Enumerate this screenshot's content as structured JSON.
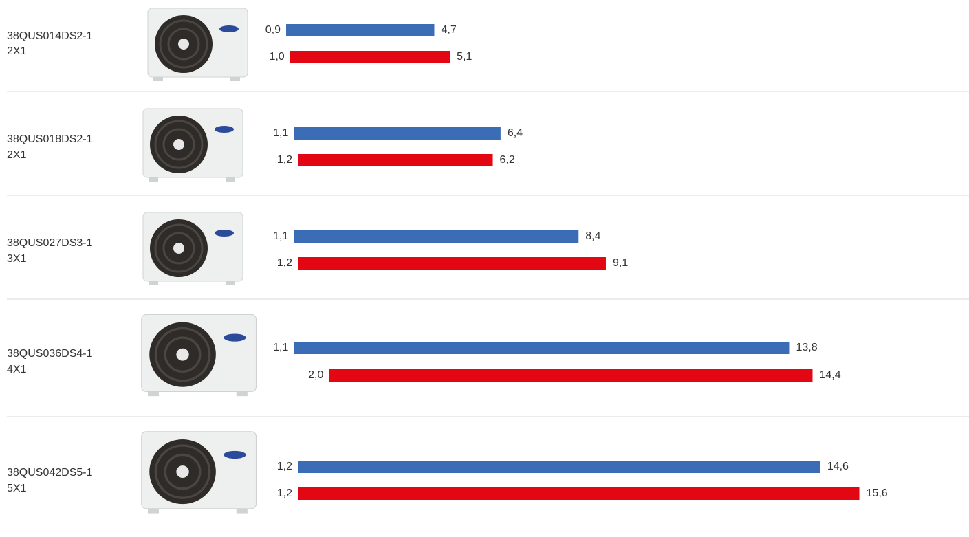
{
  "chart_data": {
    "type": "range-bar",
    "categories": [
      "38QUS014DS2-1",
      "38QUS018DS2-1",
      "38QUS027DS3-1",
      "38QUS036DS4-1",
      "38QUS042DS5-1"
    ],
    "subcategories": [
      "2X1",
      "2X1",
      "3X1",
      "4X1",
      "5X1"
    ],
    "series": [
      {
        "color": "#3a6db5",
        "values": [
          [
            0.9,
            4.7
          ],
          [
            1.1,
            6.4
          ],
          [
            1.1,
            8.4
          ],
          [
            1.1,
            13.8
          ],
          [
            1.2,
            14.6
          ]
        ],
        "value_labels": [
          [
            "0,9",
            "4,7"
          ],
          [
            "1,1",
            "6,4"
          ],
          [
            "1,1",
            "8,4"
          ],
          [
            "1,1",
            "13,8"
          ],
          [
            "1,2",
            "14,6"
          ]
        ]
      },
      {
        "color": "#e30613",
        "values": [
          [
            1.0,
            5.1
          ],
          [
            1.2,
            6.2
          ],
          [
            1.2,
            9.1
          ],
          [
            2.0,
            14.4
          ],
          [
            1.2,
            15.6
          ]
        ],
        "value_labels": [
          [
            "1,0",
            "5,1"
          ],
          [
            "1,2",
            "6,2"
          ],
          [
            "1,2",
            "9,1"
          ],
          [
            "2,0",
            "14,4"
          ],
          [
            "1,2",
            "15,6"
          ]
        ]
      }
    ]
  }
}
